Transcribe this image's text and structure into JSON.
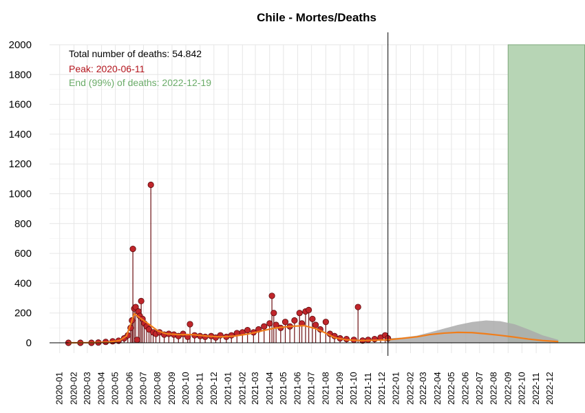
{
  "chart_data": {
    "type": "scatter",
    "title": "Chile - Mortes/Deaths",
    "xlabel": "",
    "ylabel": "",
    "ylim": [
      0,
      2000
    ],
    "y_ticks": [
      0,
      200,
      400,
      600,
      800,
      1000,
      1200,
      1400,
      1600,
      1800,
      2000
    ],
    "x_range": [
      "2019-12-10",
      "2023-02-15"
    ],
    "x_tick_labels": [
      "2020-01",
      "2020-02",
      "2020-03",
      "2020-04",
      "2020-05",
      "2020-06",
      "2020-07",
      "2020-08",
      "2020-09",
      "2020-10",
      "2020-11",
      "2020-12",
      "2021-01",
      "2021-02",
      "2021-03",
      "2021-04",
      "2021-05",
      "2021-06",
      "2021-07",
      "2021-08",
      "2021-09",
      "2021-10",
      "2021-11",
      "2021-12",
      "2022-01",
      "2022-02",
      "2022-03",
      "2022-04",
      "2022-05",
      "2022-06",
      "2022-07",
      "2022-08",
      "2022-09",
      "2022-10",
      "2022-11",
      "2022-12"
    ],
    "grid": true,
    "annotations": {
      "total": "Total number of deaths: 54.842",
      "peak": "Peak: 2020-06-11",
      "end": "End (99%) of deaths: 2022-12-19"
    },
    "last_data_date": "2021-12-14",
    "end_region_start": "2022-09-01",
    "observed_series": {
      "name": "",
      "points": [
        {
          "x": "2020-01-20",
          "y": 0
        },
        {
          "x": "2020-02-15",
          "y": 0
        },
        {
          "x": "2020-03-10",
          "y": 0
        },
        {
          "x": "2020-03-25",
          "y": 2
        },
        {
          "x": "2020-04-10",
          "y": 6
        },
        {
          "x": "2020-04-25",
          "y": 10
        },
        {
          "x": "2020-05-08",
          "y": 14
        },
        {
          "x": "2020-05-20",
          "y": 30
        },
        {
          "x": "2020-05-28",
          "y": 50
        },
        {
          "x": "2020-06-03",
          "y": 100
        },
        {
          "x": "2020-06-06",
          "y": 150
        },
        {
          "x": "2020-06-08",
          "y": 630
        },
        {
          "x": "2020-06-11",
          "y": 230
        },
        {
          "x": "2020-06-14",
          "y": 240
        },
        {
          "x": "2020-06-17",
          "y": 20
        },
        {
          "x": "2020-06-20",
          "y": 210
        },
        {
          "x": "2020-06-23",
          "y": 180
        },
        {
          "x": "2020-06-26",
          "y": 280
        },
        {
          "x": "2020-06-29",
          "y": 160
        },
        {
          "x": "2020-07-03",
          "y": 130
        },
        {
          "x": "2020-07-08",
          "y": 110
        },
        {
          "x": "2020-07-13",
          "y": 90
        },
        {
          "x": "2020-07-17",
          "y": 1060
        },
        {
          "x": "2020-07-22",
          "y": 70
        },
        {
          "x": "2020-07-28",
          "y": 60
        },
        {
          "x": "2020-08-05",
          "y": 70
        },
        {
          "x": "2020-08-15",
          "y": 55
        },
        {
          "x": "2020-08-25",
          "y": 60
        },
        {
          "x": "2020-09-05",
          "y": 55
        },
        {
          "x": "2020-09-15",
          "y": 45
        },
        {
          "x": "2020-09-25",
          "y": 60
        },
        {
          "x": "2020-10-05",
          "y": 40
        },
        {
          "x": "2020-10-10",
          "y": 125
        },
        {
          "x": "2020-10-20",
          "y": 50
        },
        {
          "x": "2020-11-01",
          "y": 45
        },
        {
          "x": "2020-11-12",
          "y": 40
        },
        {
          "x": "2020-11-25",
          "y": 45
        },
        {
          "x": "2020-12-05",
          "y": 35
        },
        {
          "x": "2020-12-15",
          "y": 50
        },
        {
          "x": "2020-12-28",
          "y": 40
        },
        {
          "x": "2021-01-08",
          "y": 50
        },
        {
          "x": "2021-01-20",
          "y": 65
        },
        {
          "x": "2021-02-01",
          "y": 70
        },
        {
          "x": "2021-02-12",
          "y": 85
        },
        {
          "x": "2021-02-25",
          "y": 70
        },
        {
          "x": "2021-03-08",
          "y": 90
        },
        {
          "x": "2021-03-20",
          "y": 110
        },
        {
          "x": "2021-04-01",
          "y": 130
        },
        {
          "x": "2021-04-06",
          "y": 315
        },
        {
          "x": "2021-04-10",
          "y": 200
        },
        {
          "x": "2021-04-15",
          "y": 120
        },
        {
          "x": "2021-04-25",
          "y": 100
        },
        {
          "x": "2021-05-05",
          "y": 140
        },
        {
          "x": "2021-05-15",
          "y": 110
        },
        {
          "x": "2021-05-25",
          "y": 150
        },
        {
          "x": "2021-06-05",
          "y": 200
        },
        {
          "x": "2021-06-10",
          "y": 130
        },
        {
          "x": "2021-06-18",
          "y": 210
        },
        {
          "x": "2021-06-25",
          "y": 220
        },
        {
          "x": "2021-07-03",
          "y": 160
        },
        {
          "x": "2021-07-10",
          "y": 120
        },
        {
          "x": "2021-07-20",
          "y": 90
        },
        {
          "x": "2021-08-01",
          "y": 140
        },
        {
          "x": "2021-08-10",
          "y": 60
        },
        {
          "x": "2021-08-20",
          "y": 45
        },
        {
          "x": "2021-09-01",
          "y": 30
        },
        {
          "x": "2021-09-15",
          "y": 25
        },
        {
          "x": "2021-10-01",
          "y": 20
        },
        {
          "x": "2021-10-10",
          "y": 240
        },
        {
          "x": "2021-10-20",
          "y": 15
        },
        {
          "x": "2021-11-01",
          "y": 20
        },
        {
          "x": "2021-11-15",
          "y": 25
        },
        {
          "x": "2021-11-28",
          "y": 35
        },
        {
          "x": "2021-12-08",
          "y": 50
        },
        {
          "x": "2021-12-14",
          "y": 30
        }
      ]
    },
    "fitted_curve": {
      "name": "",
      "color": "#f07d1a",
      "points": [
        {
          "x": "2020-01-20",
          "y": 0
        },
        {
          "x": "2020-03-15",
          "y": 1
        },
        {
          "x": "2020-04-15",
          "y": 5
        },
        {
          "x": "2020-05-10",
          "y": 15
        },
        {
          "x": "2020-05-25",
          "y": 45
        },
        {
          "x": "2020-06-05",
          "y": 140
        },
        {
          "x": "2020-06-11",
          "y": 195
        },
        {
          "x": "2020-06-20",
          "y": 175
        },
        {
          "x": "2020-07-01",
          "y": 150
        },
        {
          "x": "2020-07-15",
          "y": 120
        },
        {
          "x": "2020-08-01",
          "y": 80
        },
        {
          "x": "2020-08-20",
          "y": 60
        },
        {
          "x": "2020-09-15",
          "y": 55
        },
        {
          "x": "2020-10-15",
          "y": 55
        },
        {
          "x": "2020-11-15",
          "y": 45
        },
        {
          "x": "2020-12-15",
          "y": 40
        },
        {
          "x": "2021-01-15",
          "y": 45
        },
        {
          "x": "2021-02-15",
          "y": 60
        },
        {
          "x": "2021-03-15",
          "y": 80
        },
        {
          "x": "2021-04-15",
          "y": 100
        },
        {
          "x": "2021-05-15",
          "y": 110
        },
        {
          "x": "2021-06-15",
          "y": 115
        },
        {
          "x": "2021-07-10",
          "y": 95
        },
        {
          "x": "2021-08-01",
          "y": 65
        },
        {
          "x": "2021-08-20",
          "y": 35
        },
        {
          "x": "2021-09-15",
          "y": 20
        },
        {
          "x": "2021-10-15",
          "y": 15
        },
        {
          "x": "2021-11-15",
          "y": 17
        },
        {
          "x": "2021-12-14",
          "y": 20
        },
        {
          "x": "2022-01-15",
          "y": 30
        },
        {
          "x": "2022-02-15",
          "y": 40
        },
        {
          "x": "2022-03-15",
          "y": 55
        },
        {
          "x": "2022-04-15",
          "y": 65
        },
        {
          "x": "2022-05-15",
          "y": 70
        },
        {
          "x": "2022-06-15",
          "y": 68
        },
        {
          "x": "2022-07-15",
          "y": 60
        },
        {
          "x": "2022-08-15",
          "y": 50
        },
        {
          "x": "2022-09-15",
          "y": 38
        },
        {
          "x": "2022-10-15",
          "y": 25
        },
        {
          "x": "2022-11-15",
          "y": 15
        },
        {
          "x": "2022-12-19",
          "y": 8
        }
      ]
    },
    "forecast_band": {
      "color": "#aaaaaa",
      "upper": [
        {
          "x": "2021-12-14",
          "y": 30
        },
        {
          "x": "2022-01-15",
          "y": 35
        },
        {
          "x": "2022-02-15",
          "y": 48
        },
        {
          "x": "2022-03-15",
          "y": 70
        },
        {
          "x": "2022-04-15",
          "y": 95
        },
        {
          "x": "2022-05-15",
          "y": 120
        },
        {
          "x": "2022-06-15",
          "y": 140
        },
        {
          "x": "2022-07-15",
          "y": 150
        },
        {
          "x": "2022-08-15",
          "y": 145
        },
        {
          "x": "2022-09-15",
          "y": 125
        },
        {
          "x": "2022-10-15",
          "y": 90
        },
        {
          "x": "2022-11-15",
          "y": 50
        },
        {
          "x": "2022-12-19",
          "y": 20
        }
      ]
    },
    "colors": {
      "point_fill": "#c0262b",
      "point_stroke": "#5a0a0c",
      "stem": "#6b0d10",
      "end_region": "#b7d5b5",
      "end_region_border": "#7fa87d",
      "total_text": "#000000",
      "peak_text": "#b3141c",
      "end_text": "#6aab68",
      "grid": "#e6e6e6",
      "vline": "#000000",
      "band": "#aaaaaa"
    }
  }
}
